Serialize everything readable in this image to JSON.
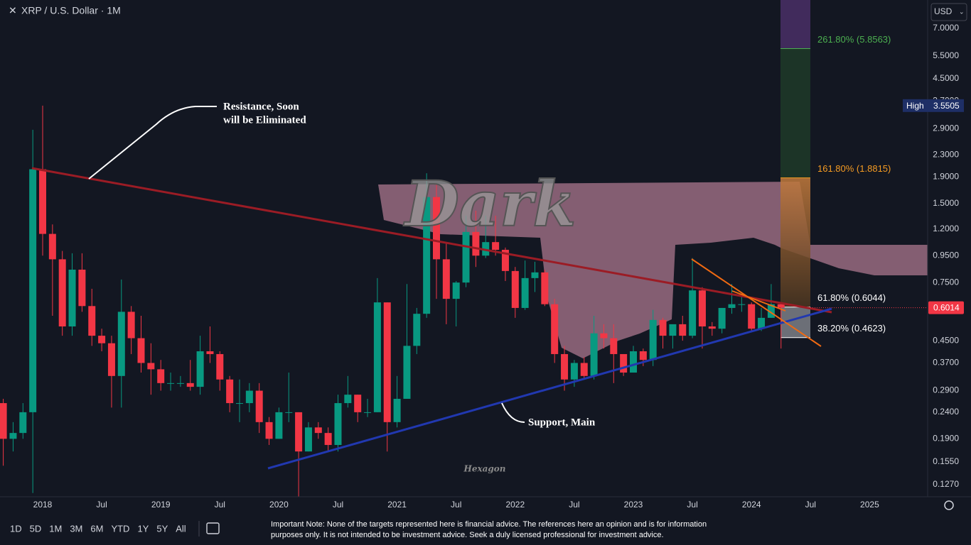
{
  "header": {
    "symbol": "XRP / U.S. Dollar · 1M",
    "currency": "USD"
  },
  "chart_data": {
    "type": "candlestick",
    "log_scale": true,
    "up_color": "#089981",
    "down_color": "#f23645",
    "x": [
      "2017-09",
      "2017-10",
      "2017-11",
      "2017-12",
      "2018-01",
      "2018-02",
      "2018-03",
      "2018-04",
      "2018-05",
      "2018-06",
      "2018-07",
      "2018-08",
      "2018-09",
      "2018-10",
      "2018-11",
      "2018-12",
      "2019-01",
      "2019-02",
      "2019-03",
      "2019-04",
      "2019-05",
      "2019-06",
      "2019-07",
      "2019-08",
      "2019-09",
      "2019-10",
      "2019-11",
      "2019-12",
      "2020-01",
      "2020-02",
      "2020-03",
      "2020-04",
      "2020-05",
      "2020-06",
      "2020-07",
      "2020-08",
      "2020-09",
      "2020-10",
      "2020-11",
      "2020-12",
      "2021-01",
      "2021-02",
      "2021-03",
      "2021-04",
      "2021-05",
      "2021-06",
      "2021-07",
      "2021-08",
      "2021-09",
      "2021-10",
      "2021-11",
      "2021-12",
      "2022-01",
      "2022-02",
      "2022-03",
      "2022-04",
      "2022-05",
      "2022-06",
      "2022-07",
      "2022-08",
      "2022-09",
      "2022-10",
      "2022-11",
      "2022-12",
      "2023-01",
      "2023-02",
      "2023-03",
      "2023-04",
      "2023-05",
      "2023-06",
      "2023-07",
      "2023-08",
      "2023-09",
      "2023-10",
      "2023-11",
      "2023-12",
      "2024-01",
      "2024-02",
      "2024-03",
      "2024-04"
    ],
    "open": [
      0.26,
      0.19,
      0.2,
      0.24,
      2.03,
      1.15,
      0.92,
      0.51,
      0.84,
      0.61,
      0.47,
      0.44,
      0.33,
      0.58,
      0.46,
      0.37,
      0.35,
      0.31,
      0.31,
      0.31,
      0.3,
      0.41,
      0.4,
      0.32,
      0.26,
      0.26,
      0.29,
      0.22,
      0.19,
      0.24,
      0.24,
      0.17,
      0.21,
      0.2,
      0.18,
      0.26,
      0.28,
      0.24,
      0.24,
      0.63,
      0.22,
      0.27,
      0.43,
      0.57,
      1.59,
      0.92,
      0.65,
      0.75,
      1.17,
      0.95,
      1.07,
      1.0,
      0.83,
      0.6,
      0.78,
      0.82,
      0.62,
      0.4,
      0.32,
      0.37,
      0.33,
      0.48,
      0.46,
      0.4,
      0.34,
      0.41,
      0.38,
      0.54,
      0.47,
      0.52,
      0.47,
      0.7,
      0.51,
      0.5,
      0.6,
      0.62,
      0.62,
      0.5,
      0.55,
      0.62
    ],
    "high": [
      0.27,
      0.22,
      0.26,
      2.87,
      3.5505,
      1.25,
      0.99,
      0.97,
      0.97,
      0.71,
      0.5,
      0.47,
      0.77,
      0.61,
      0.56,
      0.44,
      0.38,
      0.34,
      0.33,
      0.38,
      0.47,
      0.51,
      0.41,
      0.33,
      0.32,
      0.31,
      0.31,
      0.23,
      0.25,
      0.34,
      0.24,
      0.22,
      0.22,
      0.21,
      0.28,
      0.33,
      0.28,
      0.27,
      0.78,
      0.63,
      0.33,
      0.74,
      0.6,
      1.96,
      1.77,
      1.07,
      0.76,
      1.35,
      1.41,
      1.35,
      1.35,
      1.02,
      0.86,
      0.91,
      0.9,
      0.84,
      0.65,
      0.43,
      0.38,
      0.39,
      0.56,
      0.52,
      0.52,
      0.4,
      0.43,
      0.42,
      0.59,
      0.55,
      0.5,
      0.56,
      0.93,
      0.72,
      0.53,
      0.6,
      0.74,
      0.66,
      0.63,
      0.6,
      0.74,
      0.63
    ],
    "low": [
      0.15,
      0.17,
      0.19,
      0.118,
      0.95,
      0.56,
      0.47,
      0.47,
      0.58,
      0.43,
      0.41,
      0.25,
      0.25,
      0.4,
      0.34,
      0.28,
      0.29,
      0.29,
      0.3,
      0.29,
      0.28,
      0.37,
      0.29,
      0.24,
      0.22,
      0.24,
      0.2,
      0.18,
      0.19,
      0.22,
      0.11,
      0.17,
      0.19,
      0.17,
      0.17,
      0.25,
      0.22,
      0.23,
      0.24,
      0.17,
      0.21,
      0.27,
      0.4,
      0.55,
      0.65,
      0.52,
      0.51,
      0.72,
      0.86,
      0.93,
      0.95,
      0.76,
      0.55,
      0.59,
      0.69,
      0.61,
      0.37,
      0.29,
      0.3,
      0.32,
      0.32,
      0.42,
      0.31,
      0.33,
      0.34,
      0.36,
      0.36,
      0.42,
      0.42,
      0.45,
      0.46,
      0.42,
      0.47,
      0.48,
      0.57,
      0.58,
      0.49,
      0.49,
      0.55,
      0.42
    ],
    "close": [
      0.19,
      0.2,
      0.24,
      2.03,
      1.15,
      0.92,
      0.51,
      0.84,
      0.61,
      0.47,
      0.44,
      0.33,
      0.58,
      0.46,
      0.37,
      0.35,
      0.31,
      0.31,
      0.31,
      0.3,
      0.41,
      0.4,
      0.32,
      0.26,
      0.26,
      0.29,
      0.22,
      0.19,
      0.24,
      0.24,
      0.17,
      0.21,
      0.2,
      0.18,
      0.26,
      0.28,
      0.24,
      0.24,
      0.63,
      0.22,
      0.27,
      0.43,
      0.57,
      1.59,
      0.92,
      0.65,
      0.75,
      1.17,
      0.95,
      1.07,
      1.0,
      0.83,
      0.6,
      0.78,
      0.82,
      0.62,
      0.4,
      0.32,
      0.37,
      0.33,
      0.48,
      0.46,
      0.4,
      0.34,
      0.41,
      0.38,
      0.54,
      0.47,
      0.52,
      0.47,
      0.7,
      0.51,
      0.5,
      0.6,
      0.62,
      0.62,
      0.5,
      0.55,
      0.62,
      0.6014
    ],
    "ylim": [
      0.1142,
      8.98
    ],
    "yticks": [
      {
        "value": 7,
        "label": "7.0000"
      },
      {
        "value": 5.5,
        "label": "5.5000"
      },
      {
        "value": 4.5,
        "label": "4.5000"
      },
      {
        "value": 3.7,
        "label": "3.7000"
      },
      {
        "value": 2.9,
        "label": "2.9000"
      },
      {
        "value": 2.3,
        "label": "2.3000"
      },
      {
        "value": 1.9,
        "label": "1.9000"
      },
      {
        "value": 1.5,
        "label": "1.5000"
      },
      {
        "value": 1.2,
        "label": "1.2000"
      },
      {
        "value": 0.95,
        "label": "0.9500"
      },
      {
        "value": 0.75,
        "label": "0.7500"
      },
      {
        "value": 0.45,
        "label": "0.4500"
      },
      {
        "value": 0.37,
        "label": "0.3700"
      },
      {
        "value": 0.29,
        "label": "0.2900"
      },
      {
        "value": 0.24,
        "label": "0.2400"
      },
      {
        "value": 0.19,
        "label": "0.1900"
      },
      {
        "value": 0.155,
        "label": "0.1550"
      },
      {
        "value": 0.127,
        "label": "0.1270"
      }
    ],
    "xticks": [
      {
        "value": "2018-01",
        "label": "2018"
      },
      {
        "value": "2018-07",
        "label": "Jul"
      },
      {
        "value": "2019-01",
        "label": "2019"
      },
      {
        "value": "2019-07",
        "label": "Jul"
      },
      {
        "value": "2020-01",
        "label": "2020"
      },
      {
        "value": "2020-07",
        "label": "Jul"
      },
      {
        "value": "2021-01",
        "label": "2021"
      },
      {
        "value": "2021-07",
        "label": "Jul"
      },
      {
        "value": "2022-01",
        "label": "2022"
      },
      {
        "value": "2022-07",
        "label": "Jul"
      },
      {
        "value": "2023-01",
        "label": "2023"
      },
      {
        "value": "2023-07",
        "label": "Jul"
      },
      {
        "value": "2024-01",
        "label": "2024"
      },
      {
        "value": "2024-07",
        "label": "Jul"
      },
      {
        "value": "2025-01",
        "label": "2025"
      }
    ],
    "fib_levels": [
      {
        "label": "261.80% (5.8563)",
        "value": 5.8563,
        "color": "#4caf50"
      },
      {
        "label": "161.80% (1.8815)",
        "value": 1.8815,
        "color": "#f59b22"
      },
      {
        "label": "61.80% (0.6044)",
        "value": 0.6044,
        "color": "#ffffff"
      },
      {
        "label": "38.20% (0.4623)",
        "value": 0.4623,
        "color": "#ffffff"
      }
    ],
    "high_marker": {
      "label": "High",
      "value": 3.5505
    },
    "resistance_note": [
      "Resistance, Soon",
      "will be Eliminated"
    ],
    "support_note": "Support, Main",
    "watermarks": [
      "Dark",
      "Hexagon"
    ]
  },
  "toolbar": {
    "ranges": [
      "1D",
      "5D",
      "1M",
      "3M",
      "6M",
      "YTD",
      "1Y",
      "5Y",
      "All"
    ]
  },
  "footer_note": [
    "Important Note: None of the targets represented here is financial advice. The references here an opinion and is for information",
    "purposes only. It is not intended to be investment advice. Seek a duly licensed professional for investment advice."
  ]
}
